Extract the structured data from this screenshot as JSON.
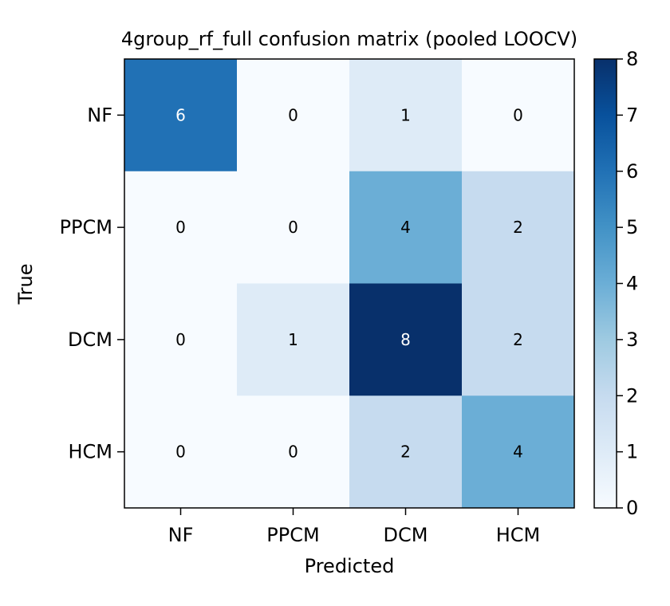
{
  "chart_data": {
    "type": "heatmap",
    "title": "4group_rf_full confusion matrix (pooled LOOCV)",
    "xlabel": "Predicted",
    "ylabel": "True",
    "x_categories": [
      "NF",
      "PPCM",
      "DCM",
      "HCM"
    ],
    "y_categories": [
      "NF",
      "PPCM",
      "DCM",
      "HCM"
    ],
    "matrix": [
      [
        6,
        0,
        1,
        0
      ],
      [
        0,
        0,
        4,
        2
      ],
      [
        0,
        1,
        8,
        2
      ],
      [
        0,
        0,
        2,
        4
      ]
    ],
    "colorbar": {
      "range": [
        0,
        8
      ],
      "ticks": [
        "0",
        "1",
        "2",
        "3",
        "4",
        "5",
        "6",
        "7",
        "8"
      ],
      "colormap": "Blues"
    }
  }
}
